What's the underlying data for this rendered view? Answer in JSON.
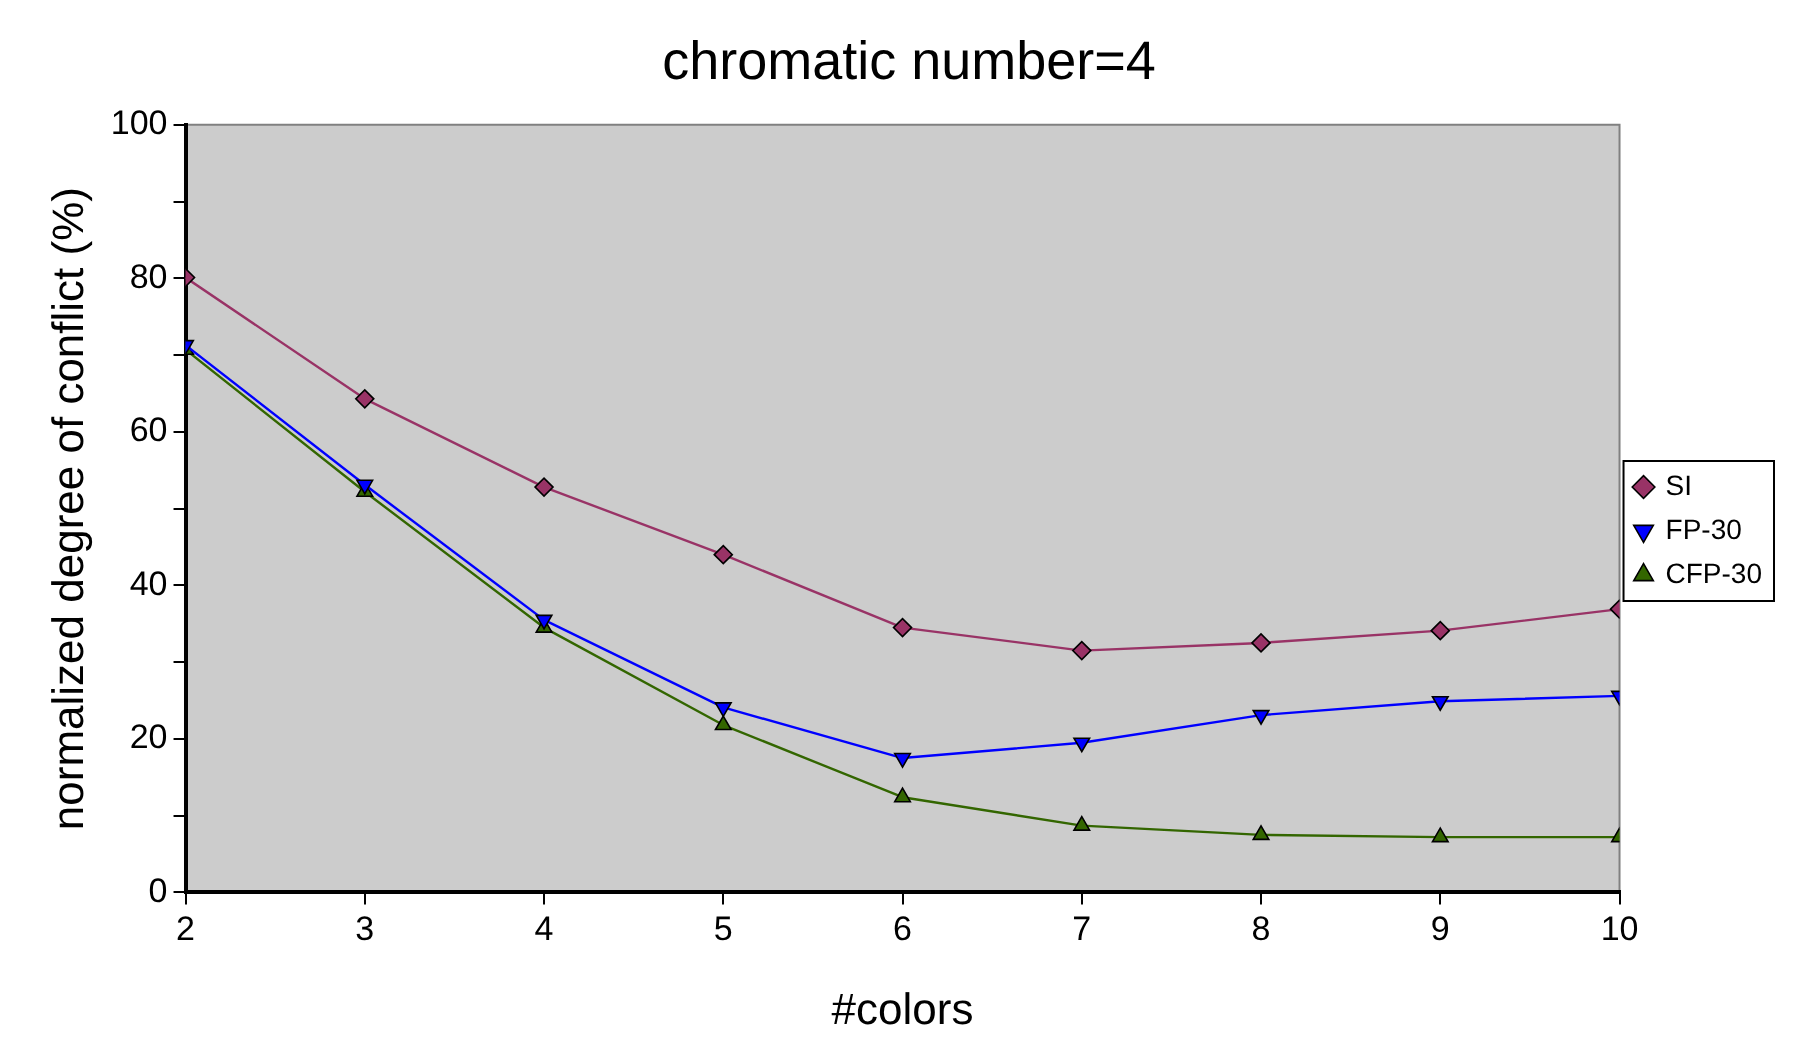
{
  "chart_data": {
    "type": "line",
    "title": "chromatic number=4",
    "xlabel": "#colors",
    "ylabel": "normalized degree of conflict (%)",
    "x": [
      2,
      3,
      4,
      5,
      6,
      7,
      8,
      9,
      10
    ],
    "series": [
      {
        "name": "SI",
        "color": "#993366",
        "marker": "diamond",
        "values": [
          80.1,
          64.3,
          52.8,
          44.0,
          34.5,
          31.5,
          32.5,
          34.1,
          36.9
        ]
      },
      {
        "name": "FP-30",
        "color": "#0000ff",
        "marker": "triangle-down",
        "values": [
          71.3,
          53.1,
          35.5,
          24.1,
          17.5,
          19.5,
          23.1,
          24.9,
          25.6
        ]
      },
      {
        "name": "CFP-30",
        "color": "#336600",
        "marker": "triangle",
        "values": [
          70.7,
          52.2,
          34.5,
          21.8,
          12.4,
          8.7,
          7.5,
          7.2,
          7.2
        ]
      }
    ],
    "xlim": [
      2,
      10
    ],
    "xticks": [
      2,
      3,
      4,
      5,
      6,
      7,
      8,
      9,
      10
    ],
    "ylim": [
      0,
      100
    ],
    "yticks": [
      0,
      {
        "value": 10,
        "label": null
      },
      20,
      {
        "value": 30,
        "label": null
      },
      40,
      {
        "value": 50,
        "label": null
      },
      60,
      {
        "value": 70,
        "label": null
      },
      80,
      {
        "value": 90,
        "label": null
      },
      100
    ],
    "grid": false,
    "legend": "right",
    "line_style": "solid"
  }
}
